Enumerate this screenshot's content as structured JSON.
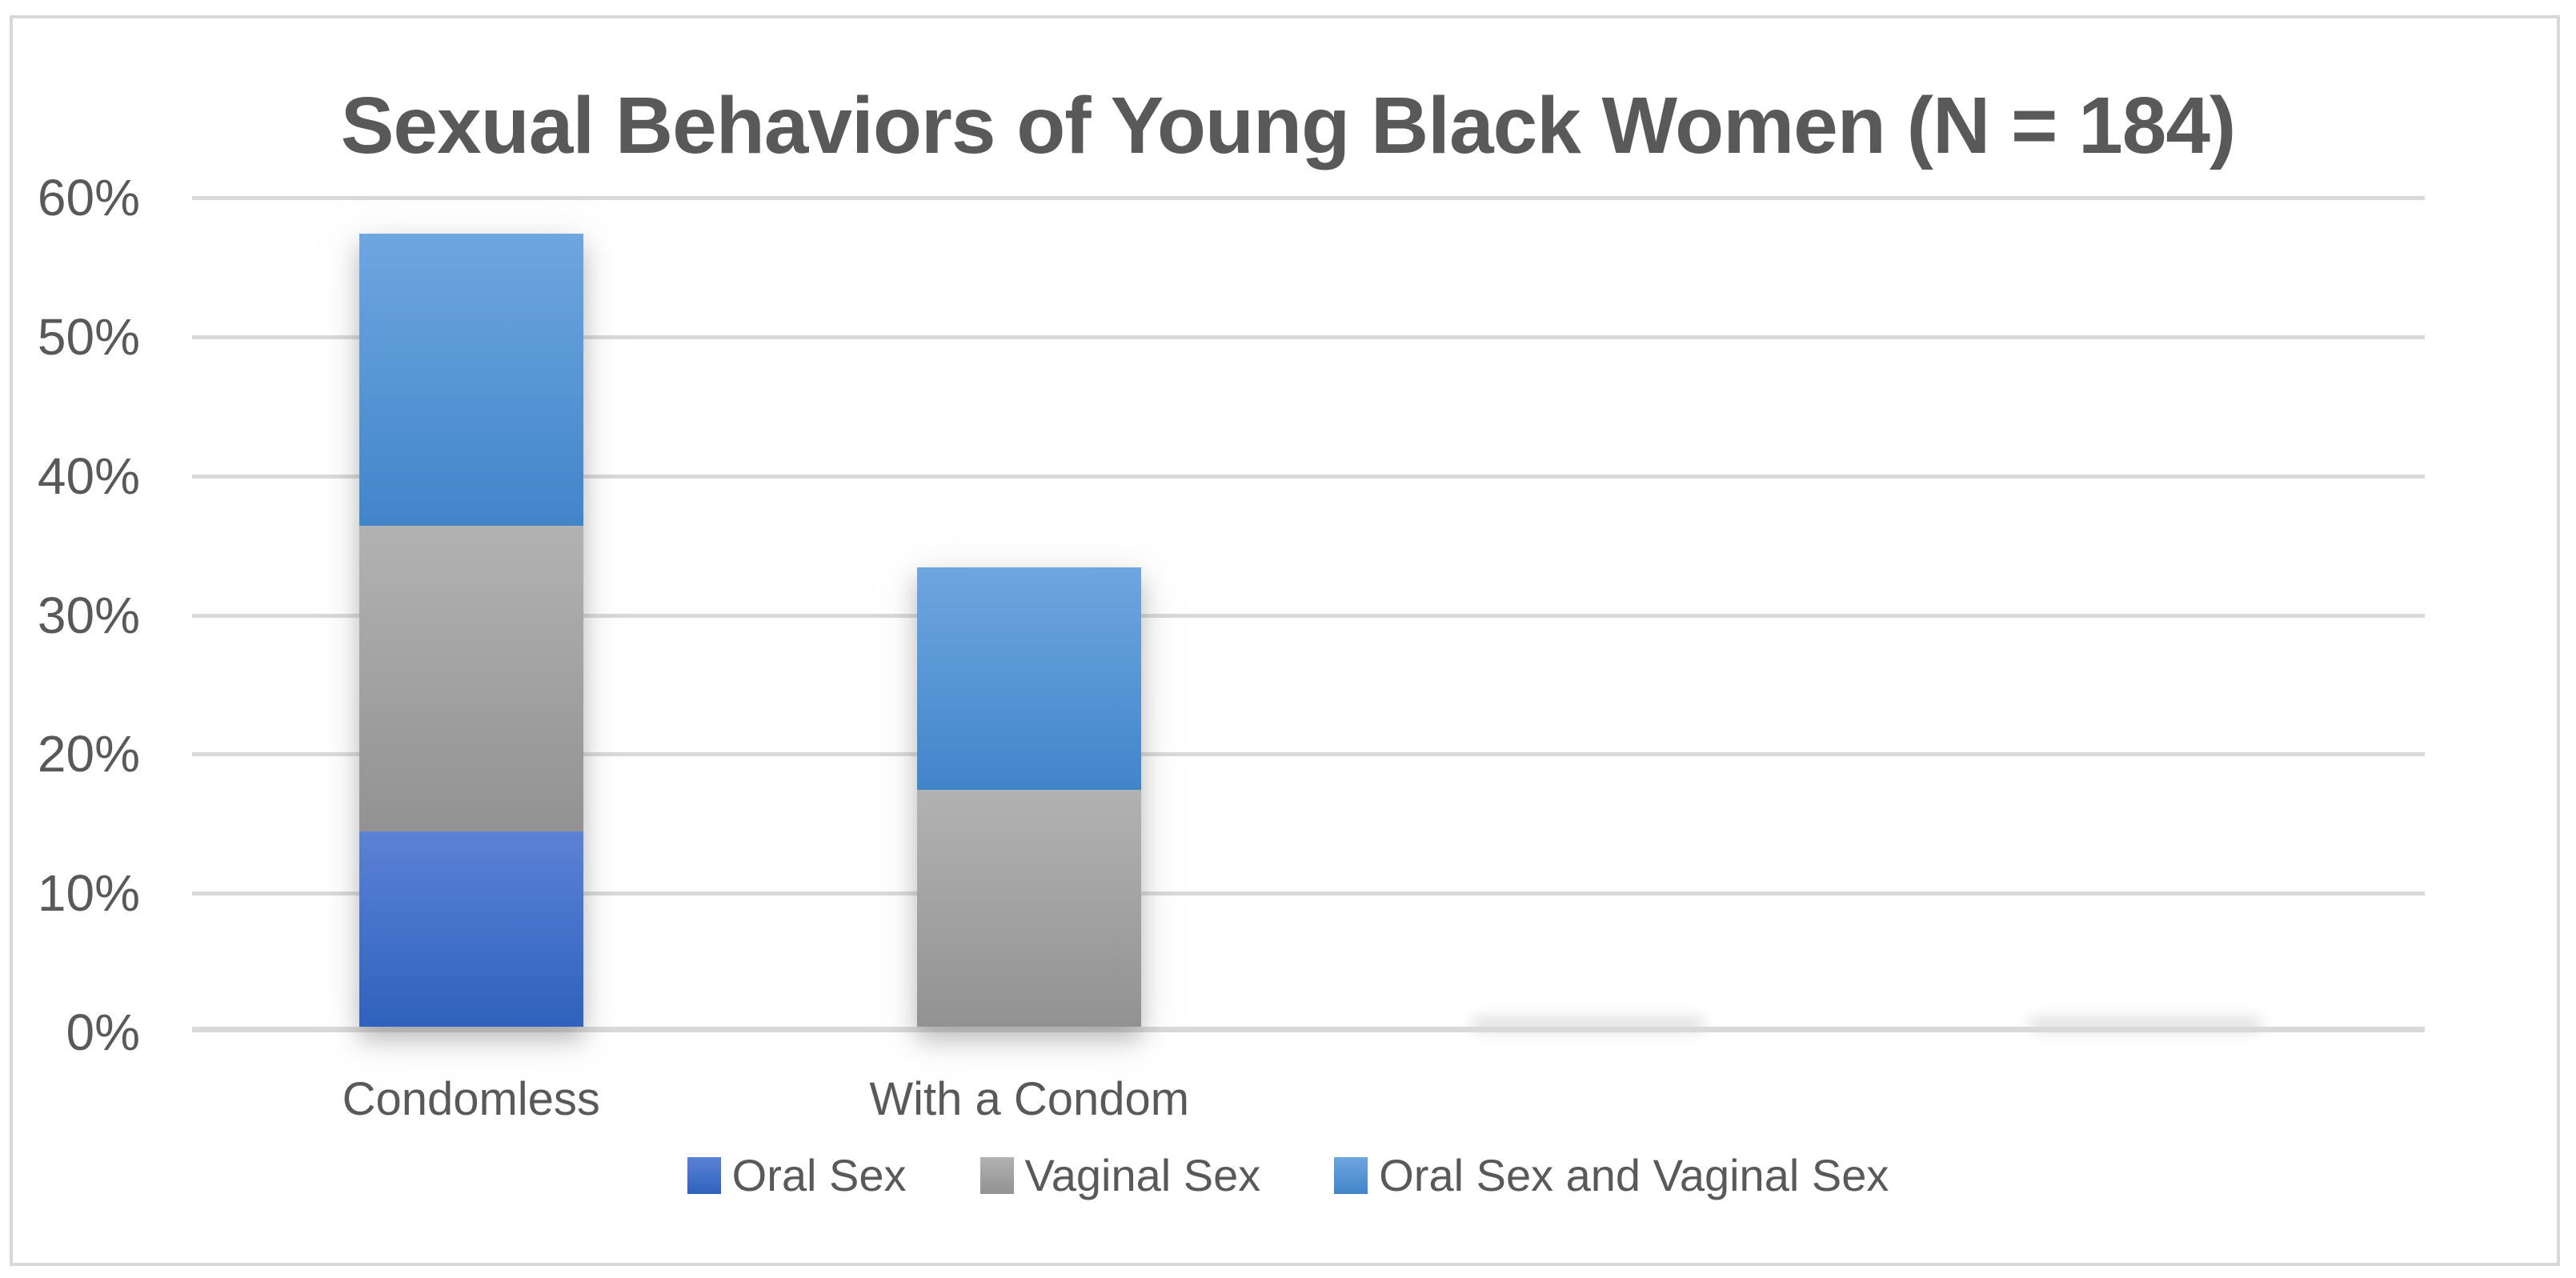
{
  "chart_data": {
    "type": "bar",
    "stacked": true,
    "title": "Sexual Behaviors of Young Black Women (N = 184)",
    "categories": [
      "Condomless",
      "With a Condom",
      "",
      ""
    ],
    "series": [
      {
        "name": "Oral Sex",
        "values": [
          14,
          0,
          0,
          0
        ]
      },
      {
        "name": "Vaginal Sex",
        "values": [
          22,
          17,
          0,
          0
        ]
      },
      {
        "name": "Oral Sex and Vaginal Sex",
        "values": [
          21,
          16,
          0,
          0
        ]
      }
    ],
    "stacked_totals": [
      57,
      33,
      0,
      0
    ],
    "y_tick_labels": [
      "60%",
      "50%",
      "40%",
      "30%",
      "20%",
      "10%",
      "0%"
    ],
    "ylim": [
      0,
      60
    ],
    "grid": true,
    "legend_position": "bottom"
  },
  "colors": {
    "series": [
      {
        "name": "Oral Sex",
        "top": "#5b82d6",
        "bottom": "#2e62bc"
      },
      {
        "name": "Vaginal Sex",
        "top": "#b2b2b2",
        "bottom": "#929292"
      },
      {
        "name": "Oral Sex and Vaginal Sex",
        "top": "#6ea6e0",
        "bottom": "#4185c9"
      }
    ],
    "gridline": "#d9d9d9",
    "frame_border": "#d9d9d9",
    "text": "#595959"
  }
}
